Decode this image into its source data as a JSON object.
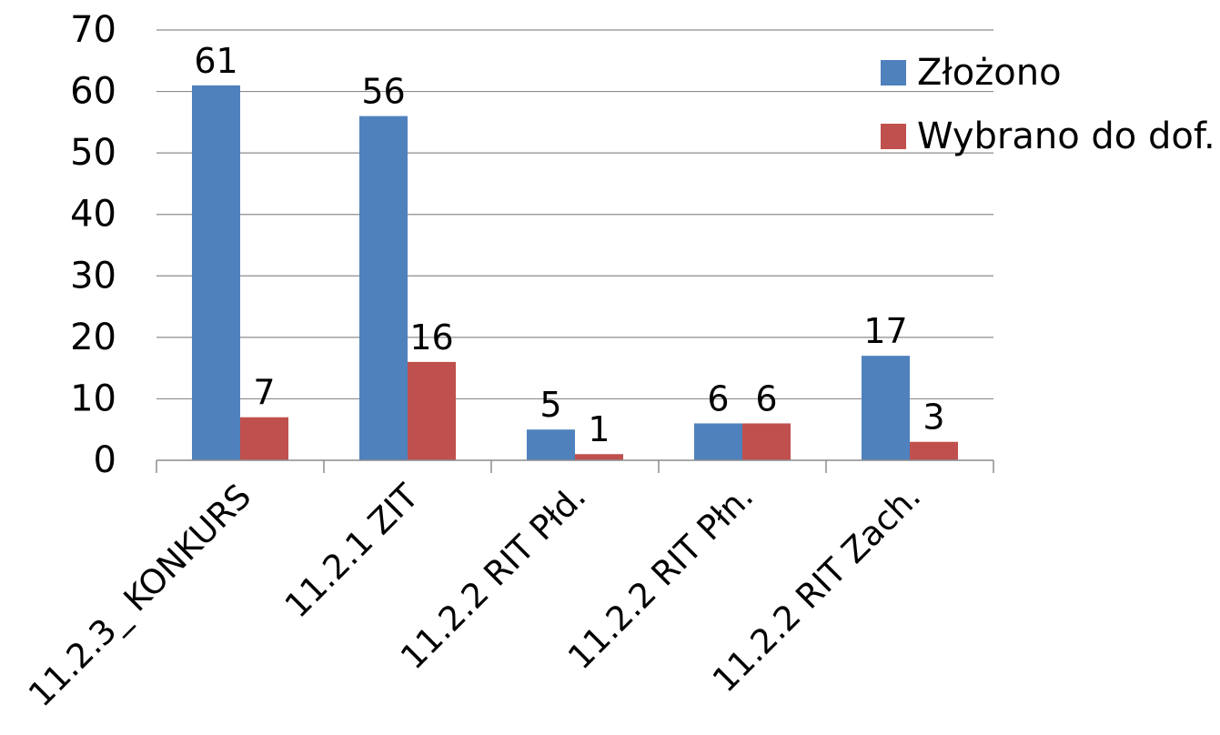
{
  "chart_data": {
    "type": "bar",
    "categories": [
      "11.2.3_ KONKURS",
      "11.2.1 ZIT",
      "11.2.2 RIT Płd.",
      "11.2.2 RIT Płn.",
      "11.2.2 RIT Zach."
    ],
    "series": [
      {
        "name": "Złożono",
        "values": [
          61,
          56,
          5,
          6,
          17
        ],
        "color": "#4F81BD"
      },
      {
        "name": "Wybrano do dof.",
        "values": [
          7,
          16,
          1,
          6,
          3
        ],
        "color": "#C0504D"
      }
    ],
    "ylim": [
      0,
      70
    ],
    "yticks": [
      "0",
      "10",
      "20",
      "30",
      "40",
      "50",
      "60",
      "70"
    ],
    "grid": true,
    "legend": "top-right",
    "data_labels": true
  }
}
